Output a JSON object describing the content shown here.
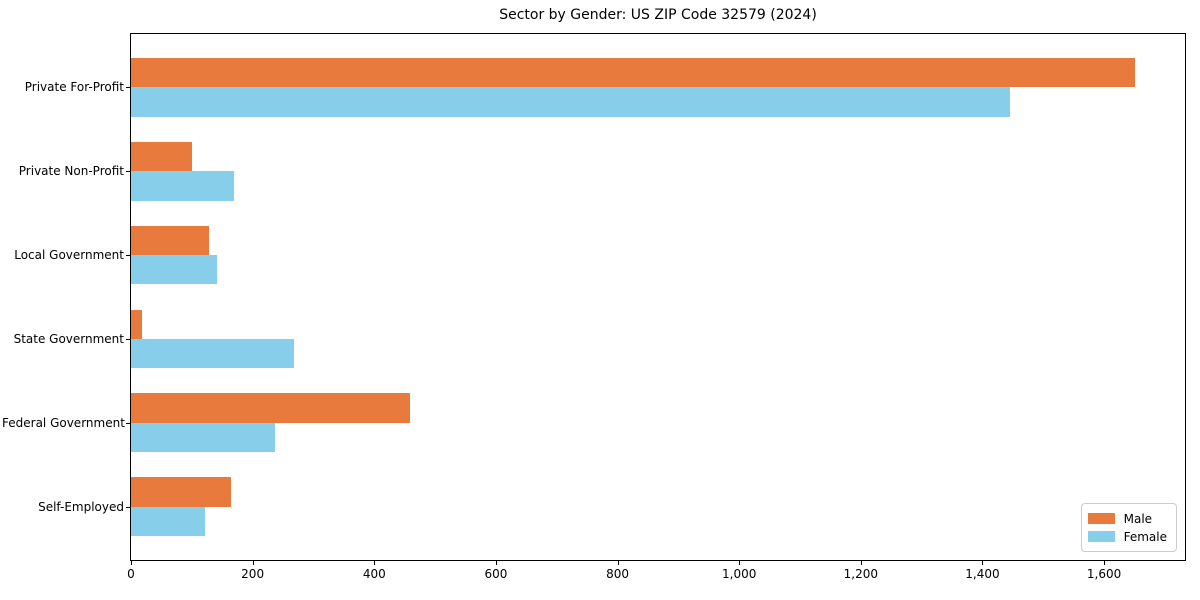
{
  "title": "Sector by Gender: US ZIP Code 32579 (2024)",
  "chart_data": {
    "type": "bar",
    "orientation": "horizontal",
    "title": "Sector by Gender: US ZIP Code 32579 (2024)",
    "categories": [
      "Private For-Profit",
      "Private Non-Profit",
      "Local Government",
      "State Government",
      "Federal Government",
      "Self-Employed"
    ],
    "series": [
      {
        "name": "Male",
        "color": "#e87a3d",
        "values": [
          1650,
          100,
          128,
          18,
          458,
          165
        ]
      },
      {
        "name": "Female",
        "color": "#87ceeb",
        "values": [
          1445,
          170,
          141,
          268,
          237,
          121
        ]
      }
    ],
    "xlabel": "",
    "ylabel": "",
    "xlim": [
      0,
      1733
    ],
    "xticks": [
      0,
      200,
      400,
      600,
      800,
      1000,
      1200,
      1400,
      1600
    ],
    "xtick_labels": [
      "0",
      "200",
      "400",
      "600",
      "800",
      "1,000",
      "1,200",
      "1,400",
      "1,600"
    ],
    "grid": false,
    "legend": {
      "position": "lower-right",
      "entries": [
        {
          "label": "Male",
          "color": "#e87a3d"
        },
        {
          "label": "Female",
          "color": "#87ceeb"
        }
      ]
    }
  }
}
